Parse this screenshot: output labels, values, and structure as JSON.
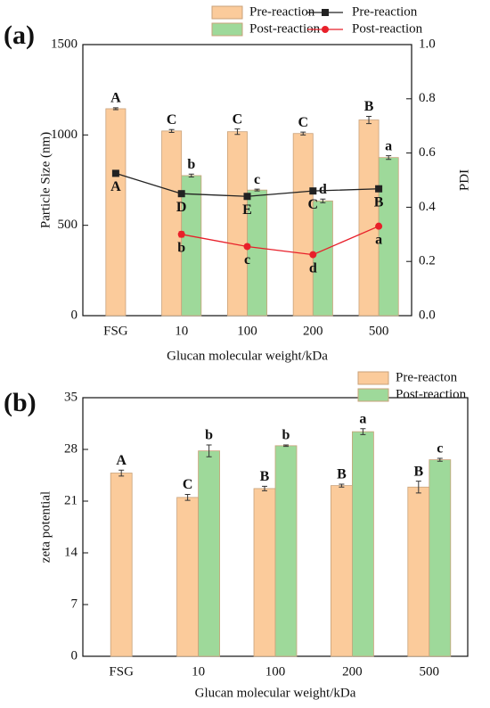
{
  "chart_data": [
    {
      "type": "bar",
      "label": "(a)",
      "categories": [
        "FSG",
        "10",
        "100",
        "200",
        "500"
      ],
      "xlabel": "Glucan molecular weight/kDa",
      "ylabel": "Particle Size (nm)",
      "y2label": "PDI",
      "ylim": [
        0,
        1500
      ],
      "yticks": [
        0,
        500,
        1000,
        1500
      ],
      "y2lim": [
        0,
        1.0
      ],
      "y2ticks": [
        {
          "value": 0,
          "label": "0.0"
        },
        0.2,
        0.4,
        0.6,
        0.8,
        {
          "value": 1,
          "label": "1.0"
        }
      ],
      "series": [
        {
          "name": "Pre-reaction",
          "type": "bar",
          "color": "#fbcb9b",
          "values": [
            1145,
            1022,
            1018,
            1008,
            1083
          ],
          "errors": [
            5,
            8,
            15,
            8,
            20
          ],
          "letters": [
            "A",
            "C",
            "C",
            "C",
            "B"
          ]
        },
        {
          "name": "Post-reaction",
          "type": "bar",
          "color": "#9ed99a",
          "values": [
            null,
            775,
            695,
            635,
            875
          ],
          "errors": [
            null,
            8,
            5,
            10,
            10
          ],
          "letters": [
            null,
            "b",
            "c",
            "d",
            "a"
          ]
        },
        {
          "name": "Pre-reaction",
          "type": "line",
          "axis": "y2",
          "marker": "square",
          "color": "#222222",
          "values": [
            0.525,
            0.45,
            0.44,
            0.46,
            0.468
          ],
          "letters": [
            "A",
            "D",
            "E",
            "C",
            "B"
          ]
        },
        {
          "name": "Post-reaction",
          "type": "line",
          "axis": "y2",
          "marker": "circle",
          "color": "#e8202a",
          "values": [
            null,
            0.3,
            0.255,
            0.225,
            0.33
          ],
          "errors": [
            null,
            0.01,
            null,
            null,
            null
          ],
          "letters": [
            null,
            "b",
            "c",
            "d",
            "a"
          ]
        }
      ]
    },
    {
      "type": "bar",
      "label": "(b)",
      "categories": [
        "FSG",
        "10",
        "100",
        "200",
        "500"
      ],
      "xlabel": "Glucan molecular weight/kDa",
      "ylabel": "zeta potential",
      "ylim": [
        0,
        35
      ],
      "yticks": [
        0,
        7,
        14,
        21,
        28,
        35
      ],
      "series": [
        {
          "name": "Pre-reacton",
          "type": "bar",
          "color": "#fbcb9b",
          "values": [
            24.8,
            21.5,
            22.7,
            23.1,
            22.9
          ],
          "errors": [
            0.4,
            0.4,
            0.3,
            0.2,
            0.8
          ],
          "letters": [
            "A",
            "C",
            "B",
            "B",
            "B"
          ]
        },
        {
          "name": "Post-reaction",
          "type": "bar",
          "color": "#9ed99a",
          "values": [
            null,
            27.8,
            28.5,
            30.4,
            26.6
          ],
          "errors": [
            null,
            0.8,
            0.1,
            0.4,
            0.2
          ],
          "letters": [
            null,
            "b",
            "b",
            "a",
            "c"
          ]
        }
      ]
    }
  ]
}
